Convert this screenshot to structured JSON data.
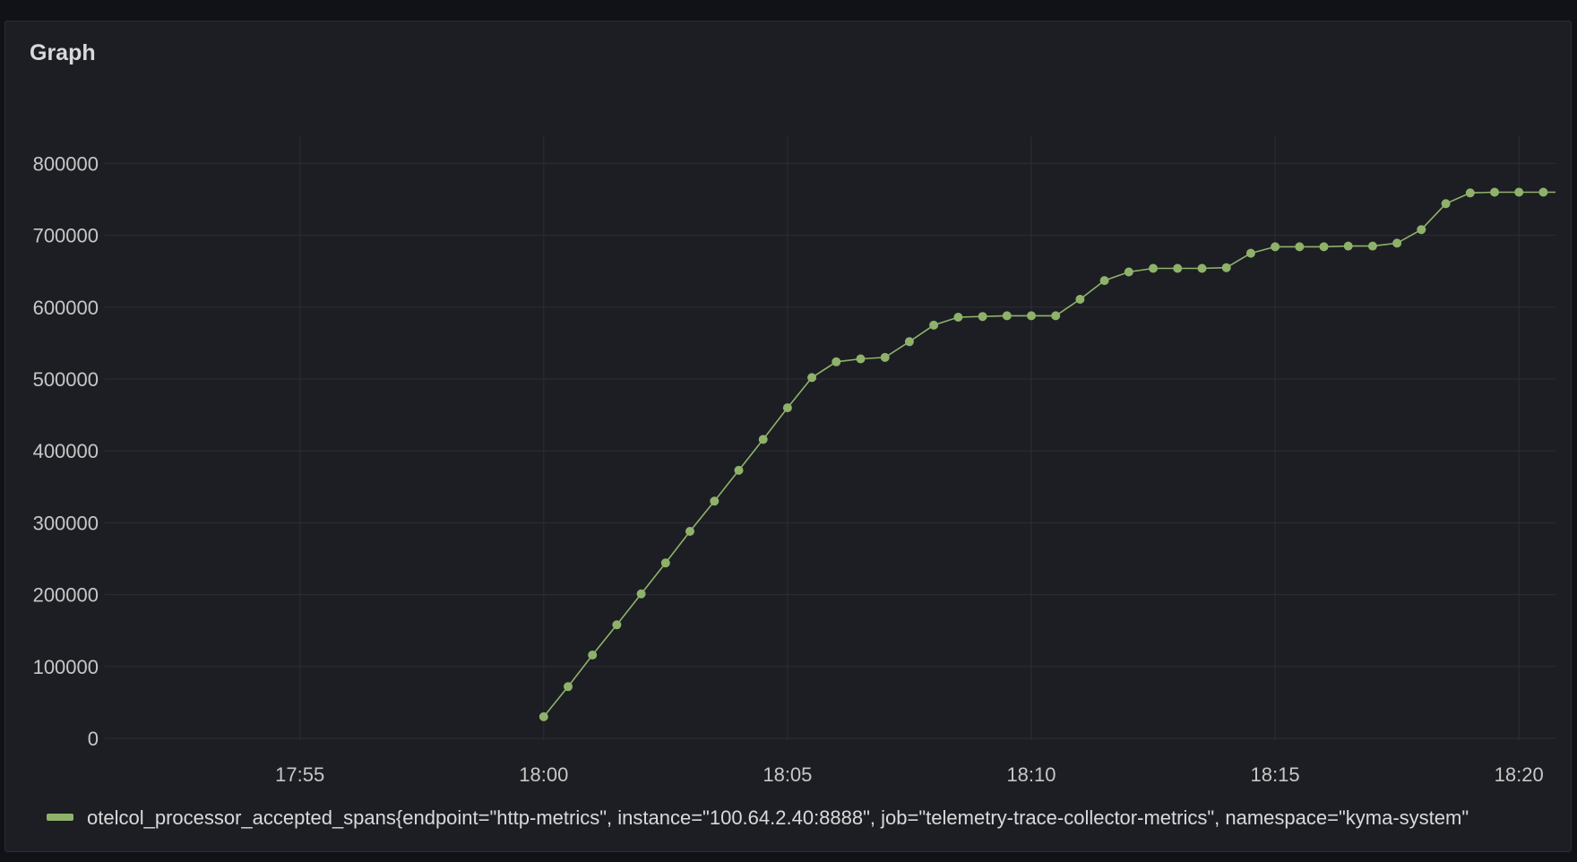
{
  "panel": {
    "title": "Graph"
  },
  "chart_data": {
    "type": "line",
    "title": "Graph",
    "xlabel": "",
    "ylabel": "",
    "x_ticks": [
      "17:55",
      "18:00",
      "18:05",
      "18:10",
      "18:15",
      "18:20"
    ],
    "y_ticks": [
      "0",
      "100000",
      "200000",
      "300000",
      "400000",
      "500000",
      "600000",
      "700000",
      "800000"
    ],
    "xlim": [
      "17:51:00",
      "18:20:45"
    ],
    "ylim": [
      -2000,
      840000
    ],
    "grid": true,
    "legend_position": "bottom",
    "series": [
      {
        "name": "otelcol_processor_accepted_spans{endpoint=\"http-metrics\", instance=\"100.64.2.40:8888\", job=\"telemetry-trace-collector-metrics\", namespace=\"kyma-system\"",
        "color": "#8fb26a",
        "x": [
          "18:00:00",
          "18:00:30",
          "18:01:00",
          "18:01:30",
          "18:02:00",
          "18:02:30",
          "18:03:00",
          "18:03:30",
          "18:04:00",
          "18:04:30",
          "18:05:00",
          "18:05:30",
          "18:06:00",
          "18:06:30",
          "18:07:00",
          "18:07:30",
          "18:08:00",
          "18:08:30",
          "18:09:00",
          "18:09:30",
          "18:10:00",
          "18:10:30",
          "18:11:00",
          "18:11:30",
          "18:12:00",
          "18:12:30",
          "18:13:00",
          "18:13:30",
          "18:14:00",
          "18:14:30",
          "18:15:00",
          "18:15:30",
          "18:16:00",
          "18:16:30",
          "18:17:00",
          "18:17:30",
          "18:18:00",
          "18:18:30",
          "18:19:00",
          "18:19:30",
          "18:20:00",
          "18:20:30"
        ],
        "values": [
          30000,
          72000,
          116000,
          158000,
          201000,
          244000,
          288000,
          330000,
          373000,
          416000,
          460000,
          502000,
          524000,
          528000,
          530000,
          552000,
          575000,
          586000,
          587000,
          588000,
          588000,
          588000,
          611000,
          637000,
          649000,
          654000,
          654000,
          654000,
          655000,
          675000,
          684000,
          684000,
          684000,
          685000,
          685000,
          689000,
          708000,
          744000,
          759000,
          760000,
          760000,
          760000
        ]
      }
    ]
  }
}
